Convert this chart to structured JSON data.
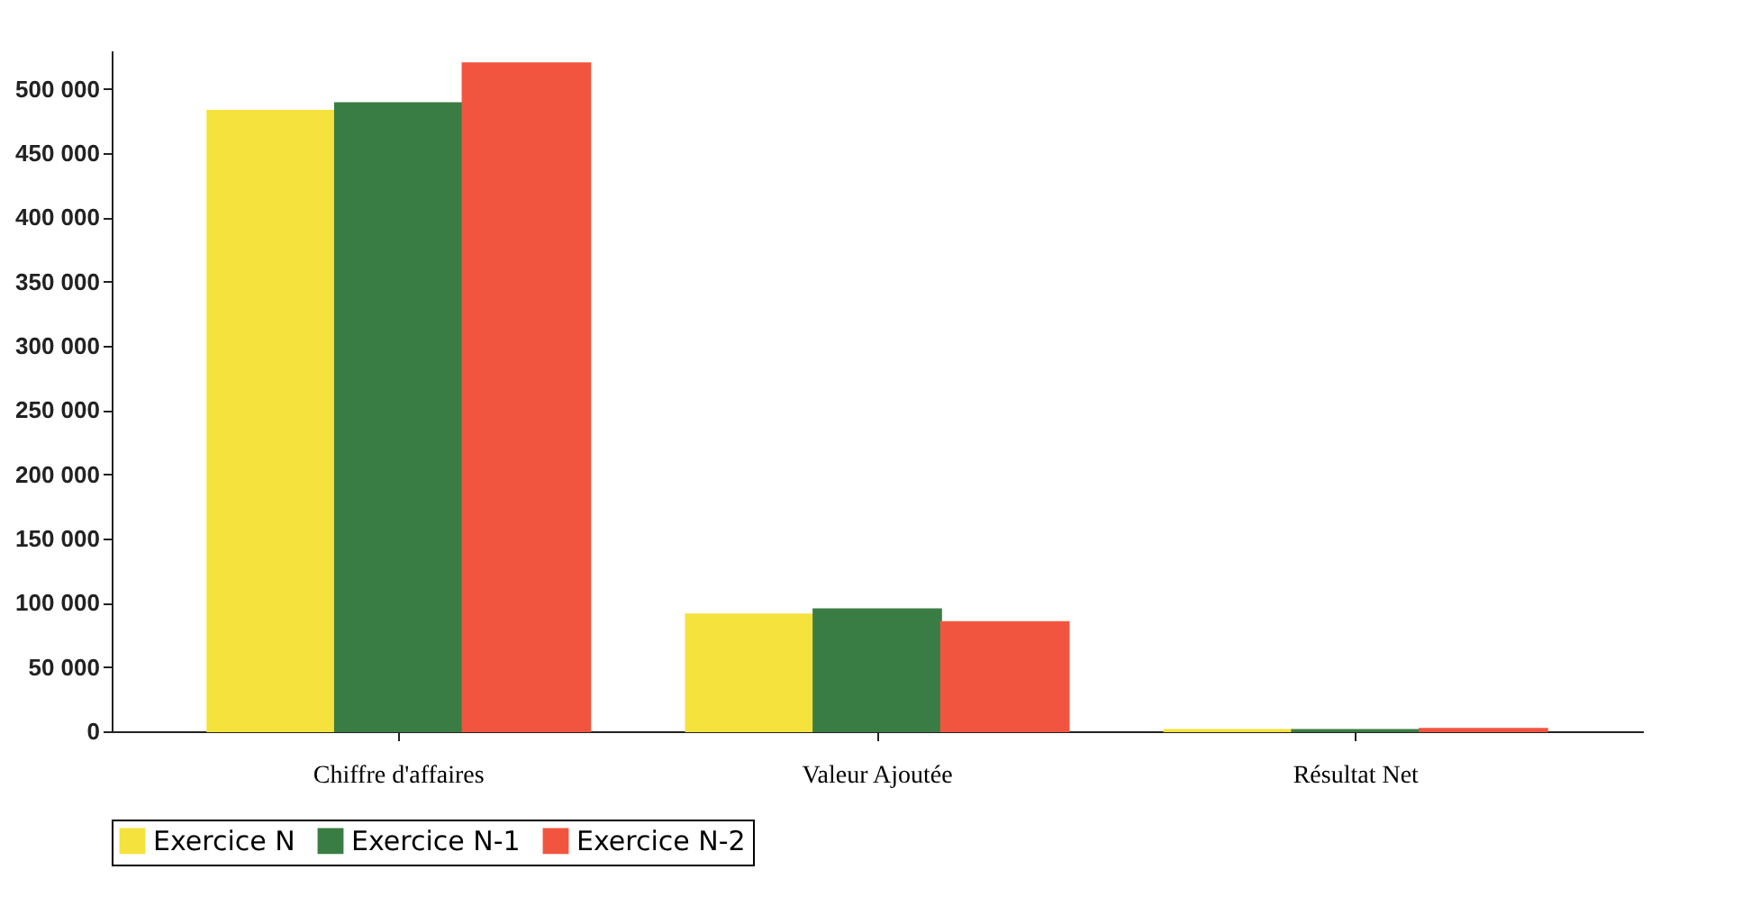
{
  "chart_data": {
    "type": "bar",
    "categories": [
      "Chiffre d'affaires",
      "Valeur Ajoutée",
      "Résultat Net"
    ],
    "series": [
      {
        "name": "Exercice N",
        "color": "#f5e23c",
        "values": [
          483000,
          91000,
          1000
        ]
      },
      {
        "name": "Exercice N-1",
        "color": "#3a7d44",
        "values": [
          489000,
          95000,
          1000
        ]
      },
      {
        "name": "Exercice N-2",
        "color": "#f2553f",
        "values": [
          520000,
          85000,
          2000
        ]
      }
    ],
    "ylim": [
      0,
      530000
    ],
    "yticks": [
      {
        "value": 0,
        "label": "0"
      },
      {
        "value": 50000,
        "label": "50 000"
      },
      {
        "value": 100000,
        "label": "100 000"
      },
      {
        "value": 150000,
        "label": "150 000"
      },
      {
        "value": 200000,
        "label": "200 000"
      },
      {
        "value": 250000,
        "label": "250 000"
      },
      {
        "value": 300000,
        "label": "300 000"
      },
      {
        "value": 350000,
        "label": "350 000"
      },
      {
        "value": 400000,
        "label": "400 000"
      },
      {
        "value": 450000,
        "label": "450 000"
      },
      {
        "value": 500000,
        "label": "500 000"
      }
    ],
    "grid": false,
    "legend": "bottom"
  }
}
